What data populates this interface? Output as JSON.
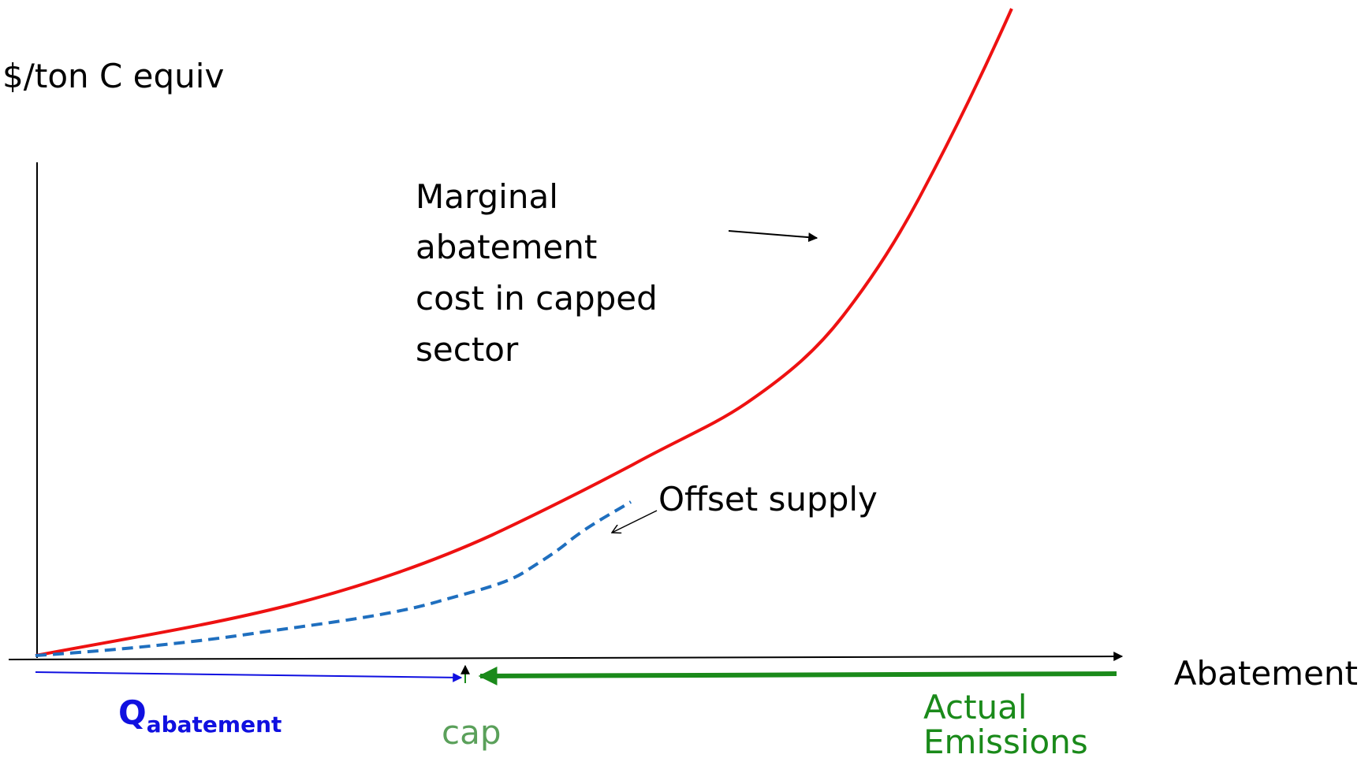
{
  "axis": {
    "y_label": "$/ton C equiv",
    "x_label": "Abatement"
  },
  "curves": {
    "marginal_cost_label": [
      "Marginal",
      "abatement",
      "cost in capped",
      "sector"
    ],
    "offset_label": "Offset supply"
  },
  "quantities": {
    "q_symbol": "Q",
    "q_subscript": "abatement",
    "cap": "cap",
    "actual_emissions": [
      "Actual",
      "Emissions"
    ]
  }
}
